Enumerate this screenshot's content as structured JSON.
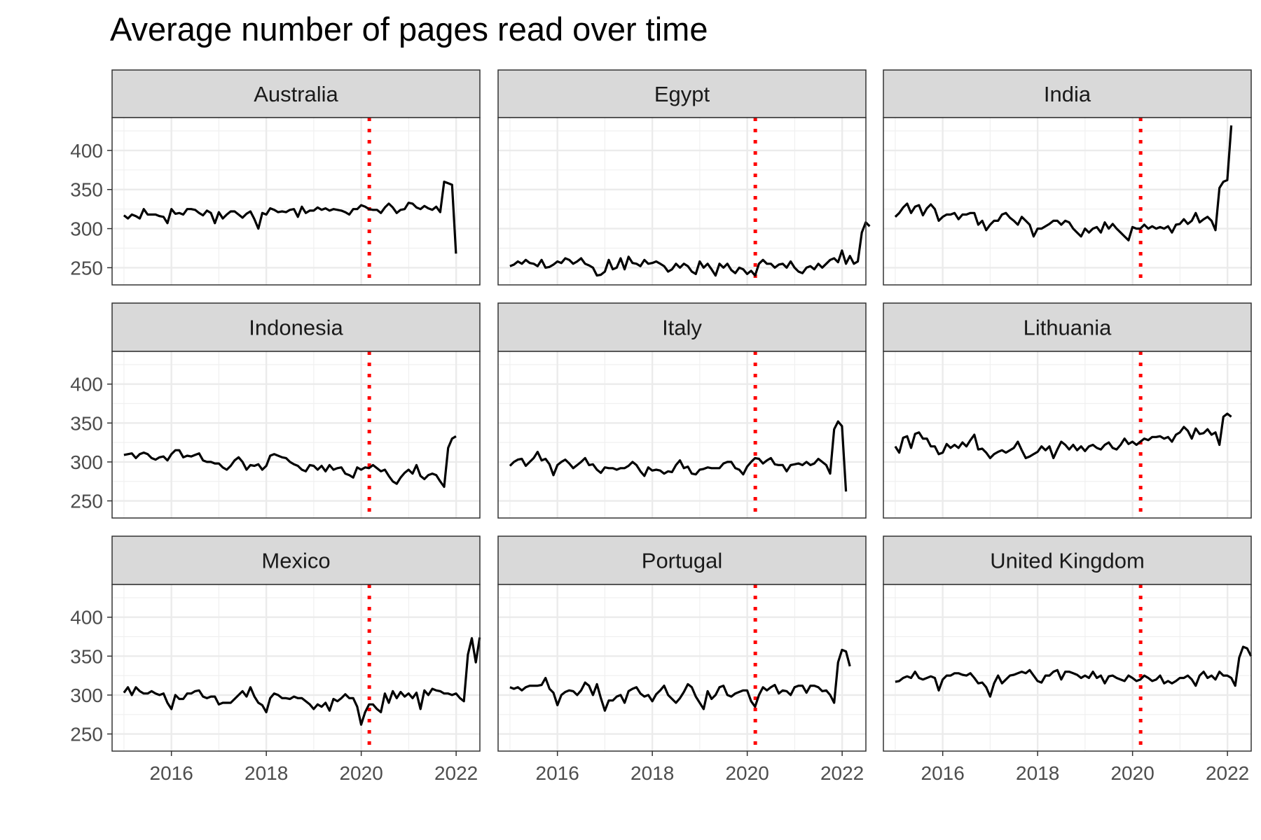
{
  "chart_data": {
    "type": "line",
    "title": "Average number of pages read over time",
    "xlabel": "",
    "ylabel": "",
    "x_ticks": [
      2016,
      2018,
      2020,
      2022
    ],
    "y_ticks": [
      250,
      300,
      350,
      400
    ],
    "xlim": [
      2014.75,
      2022.5
    ],
    "ylim": [
      228,
      442
    ],
    "x_start": 2015.0,
    "x_step": 0.0833,
    "reference_line": {
      "x": 2020.17,
      "color": "#ff0000",
      "style": "dotted"
    },
    "line_color": "#000000",
    "panel_strip_color": "#d9d9d9",
    "grid": true,
    "panels": [
      {
        "name": "Australia",
        "values": [
          317,
          313,
          318,
          316,
          313,
          325,
          318,
          318,
          318,
          316,
          315,
          307,
          325,
          319,
          320,
          318,
          325,
          325,
          324,
          320,
          317,
          323,
          320,
          307,
          321,
          313,
          318,
          322,
          322,
          318,
          314,
          319,
          322,
          312,
          300,
          320,
          318,
          326,
          324,
          321,
          322,
          321,
          324,
          325,
          315,
          328,
          320,
          323,
          323,
          327,
          324,
          326,
          323,
          325,
          324,
          323,
          321,
          318,
          325,
          325,
          330,
          328,
          325,
          324,
          324,
          320,
          327,
          332,
          327,
          320,
          324,
          325,
          333,
          332,
          327,
          325,
          329,
          326,
          324,
          328,
          321,
          360,
          358,
          356,
          268
        ]
      },
      {
        "name": "Egypt",
        "values": [
          252,
          254,
          258,
          255,
          260,
          256,
          255,
          252,
          260,
          250,
          251,
          254,
          258,
          256,
          262,
          260,
          255,
          258,
          262,
          255,
          253,
          250,
          240,
          241,
          245,
          260,
          248,
          250,
          262,
          248,
          264,
          256,
          255,
          252,
          260,
          255,
          256,
          258,
          255,
          252,
          245,
          248,
          255,
          250,
          255,
          252,
          245,
          242,
          258,
          250,
          255,
          248,
          240,
          255,
          250,
          255,
          247,
          243,
          250,
          248,
          242,
          246,
          240,
          255,
          260,
          255,
          255,
          250,
          254,
          255,
          250,
          258,
          250,
          245,
          243,
          250,
          252,
          248,
          255,
          250,
          255,
          260,
          262,
          257,
          272,
          255,
          265,
          255,
          258,
          295,
          308,
          303
        ]
      },
      {
        "name": "India",
        "values": [
          315,
          320,
          327,
          332,
          320,
          328,
          330,
          317,
          326,
          331,
          325,
          310,
          315,
          318,
          318,
          320,
          312,
          318,
          318,
          320,
          320,
          305,
          310,
          298,
          305,
          310,
          310,
          318,
          320,
          314,
          310,
          305,
          315,
          310,
          305,
          290,
          300,
          300,
          303,
          306,
          310,
          310,
          305,
          310,
          308,
          300,
          295,
          290,
          300,
          295,
          300,
          302,
          295,
          308,
          300,
          306,
          300,
          295,
          290,
          285,
          302,
          300,
          300,
          305,
          300,
          303,
          300,
          302,
          300,
          303,
          295,
          305,
          306,
          312,
          306,
          310,
          320,
          308,
          312,
          315,
          310,
          298,
          352,
          360,
          362,
          432
        ]
      },
      {
        "name": "Indonesia",
        "values": [
          309,
          310,
          311,
          305,
          310,
          312,
          310,
          305,
          303,
          306,
          307,
          302,
          310,
          315,
          315,
          306,
          308,
          307,
          309,
          311,
          302,
          300,
          300,
          298,
          298,
          293,
          290,
          295,
          302,
          306,
          300,
          290,
          296,
          295,
          297,
          290,
          295,
          308,
          310,
          308,
          306,
          305,
          300,
          297,
          295,
          290,
          288,
          296,
          295,
          290,
          295,
          288,
          296,
          290,
          292,
          293,
          285,
          283,
          280,
          293,
          290,
          293,
          292,
          296,
          292,
          288,
          290,
          282,
          275,
          272,
          280,
          286,
          290,
          285,
          296,
          282,
          278,
          283,
          285,
          283,
          275,
          268,
          318,
          330,
          333
        ]
      },
      {
        "name": "Italy",
        "values": [
          295,
          300,
          303,
          304,
          295,
          300,
          305,
          313,
          302,
          304,
          297,
          283,
          296,
          300,
          303,
          298,
          292,
          296,
          300,
          305,
          296,
          297,
          290,
          286,
          293,
          292,
          292,
          290,
          292,
          292,
          295,
          300,
          296,
          288,
          282,
          293,
          289,
          290,
          289,
          285,
          288,
          287,
          296,
          302,
          292,
          294,
          285,
          284,
          290,
          291,
          293,
          292,
          292,
          292,
          298,
          300,
          300,
          292,
          290,
          284,
          294,
          300,
          305,
          304,
          298,
          302,
          305,
          297,
          296,
          296,
          288,
          296,
          297,
          298,
          296,
          300,
          296,
          298,
          304,
          300,
          296,
          285,
          342,
          352,
          346,
          262
        ]
      },
      {
        "name": "Lithuania",
        "values": [
          320,
          312,
          331,
          333,
          318,
          336,
          338,
          330,
          330,
          320,
          320,
          310,
          312,
          323,
          318,
          322,
          318,
          325,
          320,
          328,
          335,
          316,
          317,
          312,
          305,
          310,
          313,
          315,
          312,
          315,
          318,
          326,
          315,
          305,
          307,
          310,
          313,
          320,
          315,
          320,
          305,
          316,
          326,
          322,
          316,
          322,
          315,
          320,
          314,
          320,
          322,
          318,
          316,
          322,
          325,
          318,
          316,
          322,
          330,
          323,
          326,
          322,
          326,
          330,
          328,
          332,
          332,
          333,
          330,
          332,
          326,
          335,
          338,
          345,
          340,
          330,
          343,
          336,
          337,
          342,
          335,
          338,
          322,
          358,
          362,
          358
        ]
      },
      {
        "name": "Mexico",
        "values": [
          303,
          310,
          300,
          310,
          305,
          302,
          302,
          305,
          302,
          300,
          302,
          290,
          282,
          300,
          295,
          295,
          302,
          302,
          305,
          306,
          298,
          296,
          298,
          298,
          288,
          290,
          290,
          290,
          295,
          300,
          305,
          298,
          310,
          298,
          290,
          287,
          278,
          296,
          302,
          300,
          296,
          296,
          295,
          298,
          296,
          296,
          292,
          288,
          282,
          288,
          285,
          290,
          280,
          295,
          292,
          296,
          301,
          296,
          296,
          285,
          262,
          278,
          288,
          288,
          282,
          278,
          302,
          290,
          305,
          296,
          304,
          298,
          302,
          296,
          303,
          282,
          306,
          300,
          308,
          306,
          305,
          302,
          302,
          300,
          302,
          296,
          292,
          352,
          373,
          342,
          374
        ]
      },
      {
        "name": "Portugal",
        "values": [
          310,
          308,
          310,
          306,
          310,
          312,
          312,
          312,
          313,
          322,
          308,
          303,
          287,
          300,
          304,
          306,
          305,
          300,
          306,
          316,
          312,
          300,
          314,
          296,
          280,
          293,
          293,
          298,
          300,
          290,
          305,
          308,
          310,
          302,
          298,
          300,
          292,
          301,
          306,
          312,
          300,
          295,
          290,
          296,
          304,
          314,
          310,
          298,
          290,
          282,
          305,
          295,
          300,
          310,
          312,
          300,
          298,
          302,
          304,
          306,
          306,
          292,
          285,
          300,
          310,
          306,
          310,
          313,
          302,
          306,
          305,
          300,
          310,
          312,
          312,
          303,
          312,
          312,
          310,
          305,
          306,
          300,
          290,
          342,
          358,
          356,
          337
        ]
      },
      {
        "name": "United Kingdom",
        "values": [
          317,
          318,
          322,
          324,
          322,
          330,
          322,
          320,
          322,
          324,
          322,
          306,
          320,
          325,
          325,
          328,
          328,
          326,
          325,
          328,
          322,
          315,
          316,
          310,
          298,
          315,
          325,
          315,
          320,
          325,
          326,
          328,
          330,
          328,
          332,
          325,
          318,
          316,
          325,
          325,
          330,
          332,
          320,
          330,
          330,
          328,
          326,
          322,
          325,
          322,
          330,
          322,
          325,
          315,
          324,
          325,
          322,
          320,
          318,
          325,
          322,
          318,
          320,
          325,
          322,
          318,
          320,
          325,
          315,
          318,
          315,
          318,
          322,
          322,
          325,
          320,
          312,
          325,
          330,
          322,
          325,
          320,
          330,
          325,
          325,
          322,
          312,
          348,
          362,
          360,
          350
        ]
      }
    ]
  }
}
